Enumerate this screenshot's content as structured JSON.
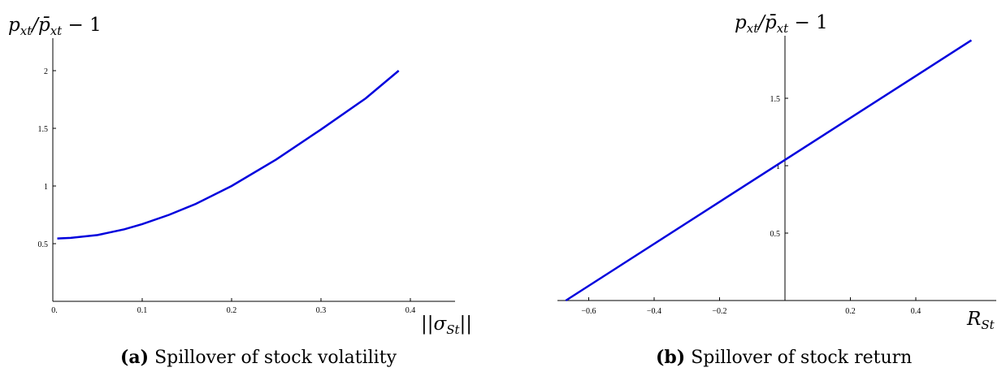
{
  "chart_data": [
    {
      "type": "line",
      "ylabel": "p_xt / p̄_xt − 1",
      "xlabel": "||σ_St||",
      "xticks": [
        "0.",
        "0.1",
        "0.2",
        "0.3",
        "0.4"
      ],
      "yticks": [
        "0.5",
        "1",
        "1.5",
        "2"
      ],
      "xlim": [
        0.0,
        0.44
      ],
      "ylim": [
        0.0,
        2.3
      ],
      "series": [
        {
          "color": "#0000dd",
          "x": [
            0.005,
            0.02,
            0.05,
            0.08,
            0.1,
            0.13,
            0.16,
            0.2,
            0.25,
            0.3,
            0.35,
            0.387
          ],
          "y": [
            0.545,
            0.55,
            0.575,
            0.625,
            0.67,
            0.75,
            0.845,
            1.0,
            1.23,
            1.49,
            1.76,
            2.0
          ]
        }
      ],
      "caption_label": "(a)",
      "caption": "Spillover of stock volatility"
    },
    {
      "type": "line",
      "ylabel": "p_xt / p̄_xt − 1",
      "xlabel": "R_St",
      "xticks": [
        "−0.6",
        "−0.4",
        "−0.2",
        "0.2",
        "0.4"
      ],
      "xtick_values": [
        -0.6,
        -0.4,
        -0.2,
        0.2,
        0.4
      ],
      "yticks": [
        "0.5",
        "1",
        "1.5"
      ],
      "ytick_values": [
        0.5,
        1,
        1.5
      ],
      "xlim": [
        -0.7,
        0.7
      ],
      "ylim": [
        0.0,
        1.93
      ],
      "series": [
        {
          "color": "#0000dd",
          "x": [
            -0.67,
            0.57
          ],
          "y": [
            0.0,
            1.93
          ]
        }
      ],
      "caption_label": "(b)",
      "caption": "Spillover of stock return"
    }
  ]
}
